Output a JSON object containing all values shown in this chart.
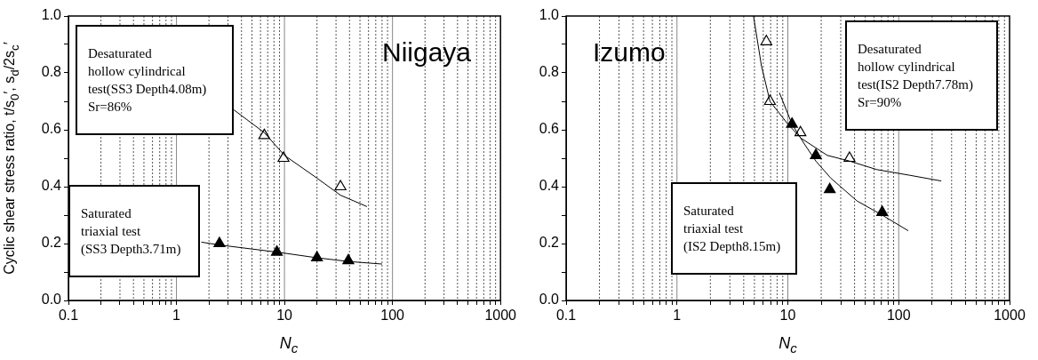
{
  "chart_data": [
    {
      "type": "scatter",
      "title": "Niigaya",
      "xlabel": "N$_{c}$",
      "ylabel": "Cyclic shear stress ratio, t/s$_{0}$′, s$_{d}$/2s$_{c}$′",
      "log": "x",
      "grid": "x",
      "marker": "triangle",
      "xlim": [
        0.1,
        1000
      ],
      "xticks": [
        0.1,
        {
          "value": 0.2,
          "label": null
        },
        {
          "value": 0.3,
          "label": null
        },
        {
          "value": 0.4,
          "label": null
        },
        {
          "value": 0.5,
          "label": null
        },
        {
          "value": 0.6,
          "label": null
        },
        {
          "value": 0.7,
          "label": null
        },
        {
          "value": 0.8,
          "label": null
        },
        {
          "value": 0.9,
          "label": null
        },
        1,
        {
          "value": 2,
          "label": null
        },
        {
          "value": 3,
          "label": null
        },
        {
          "value": 4,
          "label": null
        },
        {
          "value": 5,
          "label": null
        },
        {
          "value": 6,
          "label": null
        },
        {
          "value": 7,
          "label": null
        },
        {
          "value": 8,
          "label": null
        },
        {
          "value": 9,
          "label": null
        },
        10,
        {
          "value": 20,
          "label": null
        },
        {
          "value": 30,
          "label": null
        },
        {
          "value": 40,
          "label": null
        },
        {
          "value": 50,
          "label": null
        },
        {
          "value": 60,
          "label": null
        },
        {
          "value": 70,
          "label": null
        },
        {
          "value": 80,
          "label": null
        },
        {
          "value": 90,
          "label": null
        },
        100,
        {
          "value": 200,
          "label": null
        },
        {
          "value": 300,
          "label": null
        },
        {
          "value": 400,
          "label": null
        },
        {
          "value": 500,
          "label": null
        },
        {
          "value": 600,
          "label": null
        },
        {
          "value": 700,
          "label": null
        },
        {
          "value": 800,
          "label": null
        },
        {
          "value": 900,
          "label": null
        },
        1000
      ],
      "ylim": [
        0,
        1
      ],
      "yticks": [
        {
          "value": 0,
          "label": "0.0"
        },
        {
          "value": 0.1,
          "label": null
        },
        0.2,
        {
          "value": 0.3,
          "label": null
        },
        0.4,
        {
          "value": 0.5,
          "label": null
        },
        0.6,
        {
          "value": 0.7,
          "label": null
        },
        0.8,
        {
          "value": 0.9,
          "label": null
        },
        {
          "value": 1,
          "label": "1.0"
        }
      ],
      "annotations": [
        "Desaturated\nhollow cylindrical\ntest(SS3 Depth4.08m)\nSr=86%",
        "Saturated\ntriaxial test\n(SS3 Depth3.71m)"
      ],
      "series": [
        {
          "type": "line",
          "color": "#000000",
          "marker": "none",
          "x": [
            3.4,
            6.5,
            10,
            20,
            33,
            58
          ],
          "values": [
            0.67,
            0.59,
            0.51,
            0.43,
            0.37,
            0.33
          ]
        },
        {
          "type": "line",
          "color": "#000000",
          "marker": "none",
          "x": [
            1.7,
            2.5,
            8.5,
            20,
            39,
            80
          ],
          "values": [
            0.205,
            0.195,
            0.17,
            0.15,
            0.137,
            0.128
          ]
        },
        {
          "type": "scatter",
          "color": "#ffffff",
          "x": [
            6.5,
            9.8,
            33
          ],
          "values": [
            0.58,
            0.5,
            0.4
          ]
        },
        {
          "type": "scatter",
          "color": "#000000",
          "x": [
            2.5,
            8.5,
            20,
            39
          ],
          "values": [
            0.2,
            0.17,
            0.15,
            0.14
          ]
        }
      ]
    },
    {
      "type": "scatter",
      "title": "Izumo",
      "xlabel": "N$_{c}$",
      "log": "x",
      "grid": "x",
      "marker": "triangle",
      "xlim": [
        0.1,
        1000
      ],
      "xticks": [
        0.1,
        {
          "value": 0.2,
          "label": null
        },
        {
          "value": 0.3,
          "label": null
        },
        {
          "value": 0.4,
          "label": null
        },
        {
          "value": 0.5,
          "label": null
        },
        {
          "value": 0.6,
          "label": null
        },
        {
          "value": 0.7,
          "label": null
        },
        {
          "value": 0.8,
          "label": null
        },
        {
          "value": 0.9,
          "label": null
        },
        1,
        {
          "value": 2,
          "label": null
        },
        {
          "value": 3,
          "label": null
        },
        {
          "value": 4,
          "label": null
        },
        {
          "value": 5,
          "label": null
        },
        {
          "value": 6,
          "label": null
        },
        {
          "value": 7,
          "label": null
        },
        {
          "value": 8,
          "label": null
        },
        {
          "value": 9,
          "label": null
        },
        10,
        {
          "value": 20,
          "label": null
        },
        {
          "value": 30,
          "label": null
        },
        {
          "value": 40,
          "label": null
        },
        {
          "value": 50,
          "label": null
        },
        {
          "value": 60,
          "label": null
        },
        {
          "value": 70,
          "label": null
        },
        {
          "value": 80,
          "label": null
        },
        {
          "value": 90,
          "label": null
        },
        100,
        {
          "value": 200,
          "label": null
        },
        {
          "value": 300,
          "label": null
        },
        {
          "value": 400,
          "label": null
        },
        {
          "value": 500,
          "label": null
        },
        {
          "value": 600,
          "label": null
        },
        {
          "value": 700,
          "label": null
        },
        {
          "value": 800,
          "label": null
        },
        {
          "value": 900,
          "label": null
        },
        1000
      ],
      "ylim": [
        0,
        1
      ],
      "yticks": [
        {
          "value": 0,
          "label": "0.0"
        },
        {
          "value": 0.1,
          "label": null
        },
        0.2,
        {
          "value": 0.3,
          "label": null
        },
        0.4,
        {
          "value": 0.5,
          "label": null
        },
        0.6,
        {
          "value": 0.7,
          "label": null
        },
        0.8,
        {
          "value": 0.9,
          "label": null
        },
        {
          "value": 1,
          "label": "1.0"
        }
      ],
      "annotations": [
        "Desaturated\nhollow cylindrical\ntest(IS2 Depth7.78m)\nSr=90%",
        "Saturated\ntriaxial test\n(IS2 Depth8.15m)"
      ],
      "series": [
        {
          "type": "line",
          "color": "#000000",
          "marker": "none",
          "x": [
            4.9,
            5.78,
            6.9,
            10,
            13.2,
            22.7,
            36,
            63.6,
            126,
            242
          ],
          "values": [
            1.0,
            0.825,
            0.7,
            0.62,
            0.57,
            0.51,
            0.49,
            0.46,
            0.44,
            0.42
          ]
        },
        {
          "type": "line",
          "color": "#000000",
          "marker": "none",
          "x": [
            8.4,
            10.9,
            14.1,
            17.9,
            24.4,
            42,
            71,
            122
          ],
          "values": [
            0.73,
            0.62,
            0.55,
            0.49,
            0.43,
            0.35,
            0.3,
            0.245
          ]
        },
        {
          "type": "scatter",
          "color": "#ffffff",
          "x": [
            6.4,
            6.9,
            13,
            36
          ],
          "values": [
            0.91,
            0.7,
            0.59,
            0.5
          ]
        },
        {
          "type": "scatter",
          "color": "#000000",
          "x": [
            10.9,
            17.9,
            23.9,
            71
          ],
          "values": [
            0.62,
            0.51,
            0.39,
            0.31
          ]
        }
      ]
    }
  ]
}
